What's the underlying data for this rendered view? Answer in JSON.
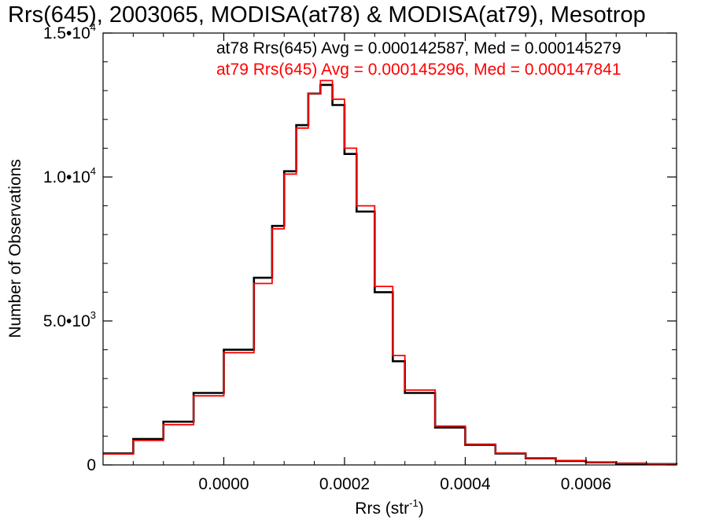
{
  "chart_data": {
    "type": "line",
    "title": "Rrs(645), 2003065, MODISA(at78) & MODISA(at79), Mesotrop",
    "xlabel": {
      "main": "Rrs (str",
      "sup": "-1",
      "close": ")"
    },
    "ylabel": "Number of Observations",
    "xlim": [
      -0.0002,
      0.00075
    ],
    "ylim": [
      0,
      15000
    ],
    "xticks": [
      {
        "value": 0.0,
        "label": "0.0000"
      },
      {
        "value": 0.0002,
        "label": "0.0002"
      },
      {
        "value": 0.0004,
        "label": "0.0004"
      },
      {
        "value": 0.0006,
        "label": "0.0006"
      }
    ],
    "yticks": [
      {
        "value": 0,
        "mant": "0",
        "exp": ""
      },
      {
        "value": 5000,
        "mant": "5.0•10",
        "exp": "3"
      },
      {
        "value": 10000,
        "mant": "1.0•10",
        "exp": "4"
      },
      {
        "value": 15000,
        "mant": "1.5•10",
        "exp": "4"
      }
    ],
    "legend_position": "top-right",
    "legend": [
      {
        "text": "at78 Rrs(645) Avg = 0.000142587, Med = 0.000145279",
        "color": "#000000"
      },
      {
        "text": "at79 Rrs(645) Avg = 0.000145296, Med = 0.000147841",
        "color": "#ff0000"
      }
    ],
    "series": [
      {
        "name": "at78",
        "color": "#000000",
        "x": [
          -0.0002,
          -0.00015,
          -0.0001,
          -5e-05,
          0.0,
          5e-05,
          8e-05,
          0.0001,
          0.00012,
          0.00014,
          0.00016,
          0.00018,
          0.0002,
          0.00022,
          0.00025,
          0.00028,
          0.0003,
          0.00035,
          0.0004,
          0.00045,
          0.0005,
          0.00055,
          0.0006,
          0.00065,
          0.0007,
          0.00075
        ],
        "y": [
          400,
          900,
          1500,
          2500,
          4000,
          6500,
          8300,
          10200,
          11800,
          12900,
          13200,
          12500,
          10800,
          8800,
          6000,
          3600,
          2500,
          1300,
          700,
          400,
          230,
          140,
          90,
          50,
          30,
          15
        ]
      },
      {
        "name": "at79",
        "color": "#ff0000",
        "x": [
          -0.0002,
          -0.00015,
          -0.0001,
          -5e-05,
          0.0,
          5e-05,
          8e-05,
          0.0001,
          0.00012,
          0.00014,
          0.00016,
          0.00018,
          0.0002,
          0.00022,
          0.00025,
          0.00028,
          0.0003,
          0.00035,
          0.0004,
          0.00045,
          0.0005,
          0.00055,
          0.0006,
          0.00065,
          0.0007,
          0.00075
        ],
        "y": [
          380,
          850,
          1400,
          2400,
          3900,
          6300,
          8200,
          10100,
          11700,
          12900,
          13350,
          12700,
          11000,
          9000,
          6200,
          3800,
          2600,
          1350,
          720,
          410,
          240,
          150,
          95,
          55,
          32,
          16
        ]
      }
    ]
  }
}
